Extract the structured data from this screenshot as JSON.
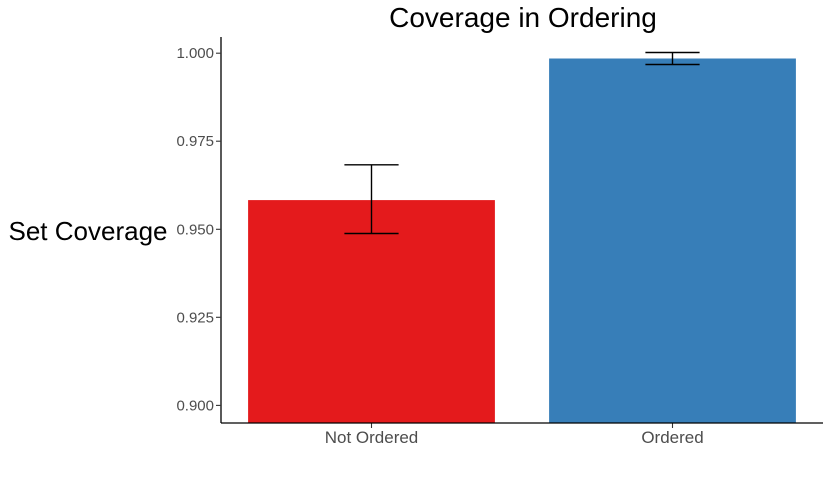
{
  "chart_data": {
    "type": "bar",
    "title": "Coverage in Ordering",
    "xlabel": "",
    "ylabel": "Set Coverage",
    "categories": [
      "Not Ordered",
      "Ordered"
    ],
    "values": [
      0.9583,
      0.9985
    ],
    "error_low": [
      0.9488,
      0.9968
    ],
    "error_high": [
      0.9683,
      1.0002
    ],
    "colors": [
      "#e41a1c",
      "#377eb8"
    ],
    "ylim": [
      0.895,
      1.0046
    ],
    "yticks": [
      0.9,
      0.925,
      0.95,
      0.975,
      1.0
    ],
    "ytick_labels": [
      "0.900",
      "0.925",
      "0.950",
      "0.975",
      "1.000"
    ],
    "grid": false,
    "legend": "none"
  }
}
